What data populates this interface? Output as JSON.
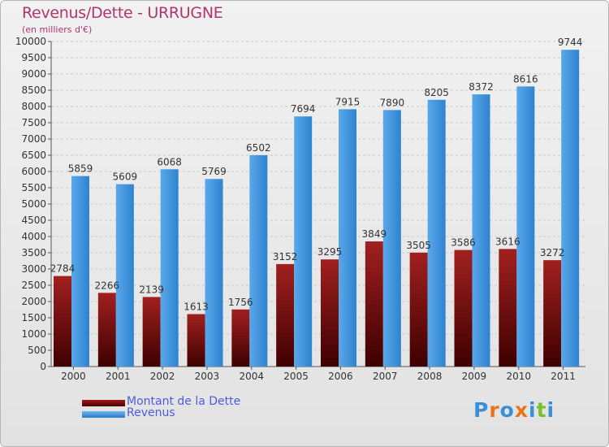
{
  "header": {
    "title": "Revenus/Dette - URRUGNE",
    "subtitle": "(en milliers d'€)"
  },
  "legend": {
    "items": [
      {
        "label": "Montant de la Dette",
        "color": "#6e0a0a"
      },
      {
        "label": "Revenus",
        "color": "#3c93de"
      }
    ]
  },
  "brand": {
    "name": "Proxiti",
    "letter_colors": [
      "#3a8fd8",
      "#e8731a",
      "#3a8fd8",
      "#e8731a",
      "#3a8fd8",
      "#7bbf2a",
      "#3a8fd8"
    ]
  },
  "chart_data": {
    "type": "bar",
    "categories": [
      "2000",
      "2001",
      "2002",
      "2003",
      "2004",
      "2005",
      "2006",
      "2007",
      "2008",
      "2009",
      "2010",
      "2011"
    ],
    "series": [
      {
        "name": "Montant de la Dette",
        "color": "#6e0a0a",
        "values": [
          2784,
          2266,
          2139,
          1613,
          1756,
          3152,
          3295,
          3849,
          3505,
          3586,
          3616,
          3272
        ]
      },
      {
        "name": "Revenus",
        "color": "#3c93de",
        "values": [
          5859,
          5609,
          6068,
          5769,
          6502,
          7694,
          7915,
          7890,
          8205,
          8372,
          8616,
          9744
        ]
      }
    ],
    "ylim": [
      0,
      10000
    ],
    "yticks": [
      0,
      500,
      1000,
      1500,
      2000,
      2500,
      3000,
      3500,
      4000,
      4500,
      5000,
      5500,
      6000,
      6500,
      7000,
      7500,
      8000,
      8500,
      9000,
      9500,
      10000
    ],
    "grid": true,
    "data_labels": true,
    "legend_position": "bottom-left"
  }
}
